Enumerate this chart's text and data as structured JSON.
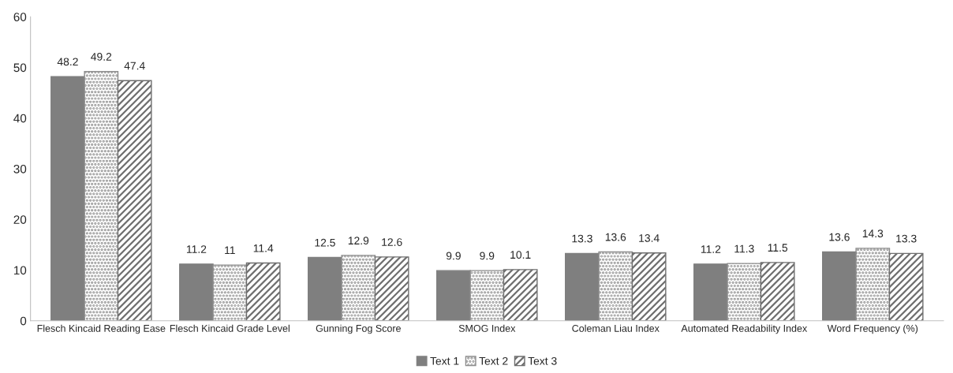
{
  "chart_data": {
    "type": "bar",
    "categories": [
      "Flesch Kincaid Reading Ease",
      "Flesch Kincaid Grade Level",
      "Gunning Fog Score",
      "SMOG Index",
      "Coleman Liau Index",
      "Automated Readability Index",
      "Word Frequency (%)"
    ],
    "series": [
      {
        "name": "Text 1",
        "color": "#7f7f7f",
        "values": [
          48.2,
          11.2,
          12.5,
          9.9,
          13.3,
          11.2,
          13.6
        ]
      },
      {
        "name": "Text 2",
        "color": "#8c8c8c",
        "values": [
          49.2,
          11,
          12.9,
          9.9,
          13.6,
          11.3,
          14.3
        ]
      },
      {
        "name": "Text 3",
        "color": "#6e6e6e",
        "values": [
          47.4,
          11.4,
          12.6,
          10.1,
          13.4,
          11.5,
          13.3
        ]
      }
    ],
    "ylim": [
      0,
      60
    ],
    "yticks": [
      0,
      10,
      20,
      30,
      40,
      50,
      60
    ],
    "data_labels": true,
    "grid": false,
    "legend": "bottom"
  }
}
